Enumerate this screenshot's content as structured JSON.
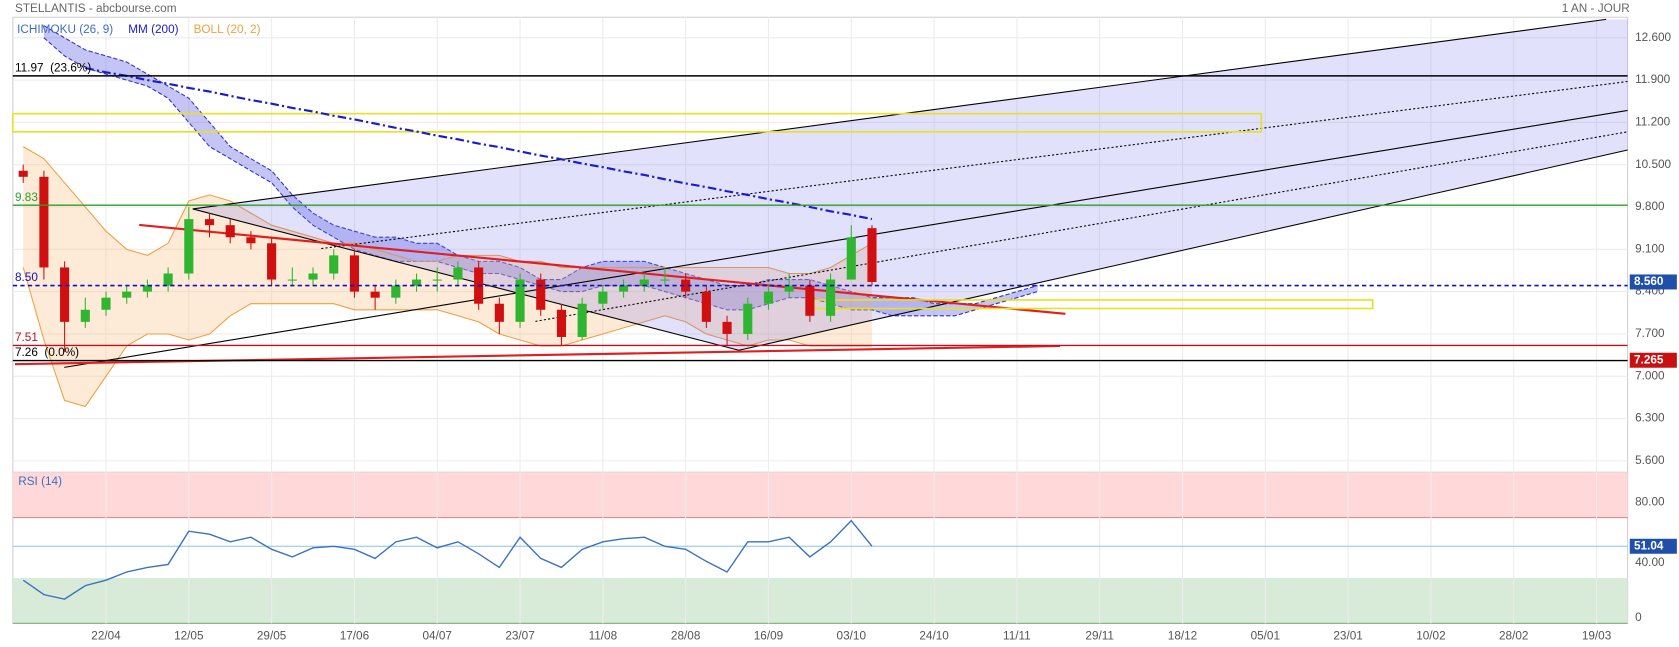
{
  "header": {
    "title": "STELLANTIS - abcbourse.com",
    "period": "1 AN - JOUR"
  },
  "chart_data": [
    {
      "type": "candlestick",
      "categories": [
        null,
        null,
        null,
        null,
        "22/04",
        null,
        null,
        null,
        "12/05",
        null,
        null,
        null,
        "29/05",
        null,
        null,
        null,
        "17/06",
        null,
        null,
        null,
        "04/07",
        null,
        null,
        null,
        "23/07",
        null,
        null,
        null,
        "11/08",
        null,
        null,
        null,
        "28/08",
        null,
        null,
        null,
        "16/09",
        null,
        null,
        null,
        "03/10",
        null,
        null,
        null,
        "24/10",
        null,
        null,
        null,
        "11/11",
        null,
        null,
        null,
        "29/11",
        null,
        null,
        null,
        "18/12",
        null,
        null,
        null,
        "05/01",
        null,
        null,
        null,
        "23/01",
        null,
        null,
        null,
        "10/02",
        null,
        null,
        null,
        "28/02",
        null,
        null,
        null,
        "19/03",
        null
      ],
      "open": [
        10.4,
        10.3,
        8.8,
        7.9,
        8.1,
        8.3,
        8.4,
        8.5,
        8.7,
        9.6,
        9.5,
        9.3,
        9.2,
        8.6,
        8.6,
        8.7,
        9.0,
        8.4,
        8.3,
        8.5,
        8.6,
        8.6,
        8.8,
        8.2,
        7.9,
        8.6,
        8.1,
        7.65,
        8.2,
        8.4,
        8.5,
        8.6,
        8.6,
        8.4,
        7.9,
        7.7,
        8.2,
        8.4,
        8.5,
        8.0,
        8.6,
        9.45,
        null,
        null,
        null,
        null,
        null,
        null,
        null,
        null,
        null,
        null,
        null,
        null,
        null,
        null,
        null,
        null,
        null,
        null,
        null,
        null,
        null,
        null,
        null,
        null,
        null,
        null,
        null,
        null,
        null,
        null,
        null,
        null,
        null,
        null,
        null,
        null
      ],
      "high": [
        10.5,
        10.4,
        8.9,
        8.3,
        8.4,
        8.5,
        8.6,
        8.8,
        9.8,
        9.7,
        9.6,
        9.4,
        9.3,
        8.8,
        8.8,
        9.1,
        9.1,
        8.5,
        8.6,
        8.7,
        8.8,
        8.9,
        8.9,
        8.3,
        8.7,
        8.7,
        8.2,
        8.3,
        8.5,
        8.6,
        8.7,
        8.8,
        8.7,
        8.5,
        8.0,
        8.3,
        8.5,
        8.7,
        8.6,
        8.7,
        9.5,
        9.5,
        null,
        null,
        null,
        null,
        null,
        null,
        null,
        null,
        null,
        null,
        null,
        null,
        null,
        null,
        null,
        null,
        null,
        null,
        null,
        null,
        null,
        null,
        null,
        null,
        null,
        null,
        null,
        null,
        null,
        null,
        null,
        null,
        null,
        null,
        null,
        null
      ],
      "low": [
        10.2,
        8.6,
        7.4,
        7.8,
        8.0,
        8.2,
        8.3,
        8.4,
        8.6,
        9.3,
        9.2,
        9.1,
        8.5,
        8.5,
        8.5,
        8.6,
        8.3,
        8.1,
        8.2,
        8.4,
        8.4,
        8.5,
        8.1,
        7.7,
        7.8,
        8.0,
        7.5,
        7.6,
        8.1,
        8.3,
        8.4,
        8.5,
        8.3,
        7.8,
        7.5,
        7.6,
        8.1,
        8.3,
        7.9,
        7.9,
        8.6,
        8.5,
        null,
        null,
        null,
        null,
        null,
        null,
        null,
        null,
        null,
        null,
        null,
        null,
        null,
        null,
        null,
        null,
        null,
        null,
        null,
        null,
        null,
        null,
        null,
        null,
        null,
        null,
        null,
        null,
        null,
        null,
        null,
        null,
        null,
        null,
        null,
        null
      ],
      "close": [
        10.3,
        8.8,
        7.9,
        8.1,
        8.3,
        8.4,
        8.5,
        8.7,
        9.6,
        9.5,
        9.3,
        9.2,
        8.6,
        8.6,
        8.7,
        9.0,
        8.4,
        8.3,
        8.5,
        8.6,
        8.6,
        8.8,
        8.2,
        7.9,
        8.6,
        8.1,
        7.65,
        8.2,
        8.4,
        8.5,
        8.6,
        8.6,
        8.4,
        7.9,
        7.7,
        8.2,
        8.4,
        8.5,
        8.0,
        8.6,
        9.3,
        8.56,
        null,
        null,
        null,
        null,
        null,
        null,
        null,
        null,
        null,
        null,
        null,
        null,
        null,
        null,
        null,
        null,
        null,
        null,
        null,
        null,
        null,
        null,
        null,
        null,
        null,
        null,
        null,
        null,
        null,
        null,
        null,
        null,
        null,
        null,
        null,
        null
      ],
      "up_color": "#2fb52f",
      "down_color": "#d01010",
      "overlays": [
        {
          "name": "ICHIMOKU (26, 9)",
          "kind": "band",
          "color": "#3f6fc0",
          "fill": "rgba(90,90,225,0.35)",
          "edge": "#3030c8",
          "upper": [
            null,
            12.8,
            12.6,
            12.4,
            12.3,
            12.2,
            12.0,
            11.8,
            11.6,
            11.2,
            10.8,
            10.6,
            10.4,
            10.0,
            9.7,
            9.5,
            9.4,
            9.3,
            9.3,
            9.2,
            9.2,
            9.0,
            8.9,
            8.9,
            8.8,
            8.6,
            8.6,
            8.8,
            8.9,
            8.9,
            8.9,
            8.8,
            8.7,
            8.6,
            8.5,
            8.5,
            8.6,
            8.6,
            8.6,
            8.5,
            8.4,
            8.3,
            8.3,
            8.3,
            8.2,
            8.2,
            8.2,
            8.3,
            8.4,
            8.5,
            null,
            null,
            null,
            null,
            null,
            null,
            null,
            null,
            null,
            null,
            null,
            null,
            null,
            null,
            null,
            null,
            null,
            null,
            null,
            null,
            null,
            null,
            null,
            null,
            null,
            null,
            null,
            null
          ],
          "lower": [
            null,
            12.6,
            12.3,
            12.1,
            12.0,
            11.9,
            11.8,
            11.6,
            11.2,
            10.8,
            10.6,
            10.4,
            10.2,
            9.8,
            9.5,
            9.3,
            9.1,
            9.0,
            8.9,
            8.9,
            8.9,
            8.8,
            8.7,
            8.7,
            8.6,
            8.5,
            8.4,
            8.4,
            8.5,
            8.5,
            8.5,
            8.4,
            8.3,
            8.2,
            8.1,
            8.1,
            8.2,
            8.3,
            8.3,
            8.2,
            8.1,
            8.1,
            8.0,
            8.0,
            8.0,
            8.0,
            8.1,
            8.2,
            8.3,
            8.4,
            null,
            null,
            null,
            null,
            null,
            null,
            null,
            null,
            null,
            null,
            null,
            null,
            null,
            null,
            null,
            null,
            null,
            null,
            null,
            null,
            null,
            null,
            null,
            null,
            null,
            null,
            null,
            null
          ]
        },
        {
          "name": "MM (200)",
          "kind": "line",
          "color": "#1a1ad0",
          "values": [
            null,
            null,
            null,
            12.1,
            12.03,
            11.97,
            11.9,
            11.84,
            11.77,
            11.71,
            11.64,
            11.57,
            11.51,
            11.44,
            11.38,
            11.31,
            11.25,
            11.18,
            11.11,
            11.05,
            10.98,
            10.92,
            10.85,
            10.79,
            10.72,
            10.65,
            10.59,
            10.52,
            10.46,
            10.39,
            10.33,
            10.26,
            10.19,
            10.13,
            10.06,
            10.0,
            9.93,
            9.87,
            9.8,
            9.73,
            9.67,
            9.6,
            null,
            null,
            null,
            null,
            null,
            null,
            null,
            null,
            null,
            null,
            null,
            null,
            null,
            null,
            null,
            null,
            null,
            null,
            null,
            null,
            null,
            null,
            null,
            null,
            null,
            null,
            null,
            null,
            null,
            null,
            null,
            null,
            null,
            null,
            null,
            null
          ]
        },
        {
          "name": "BOLL (20, 2)",
          "kind": "band",
          "color": "#f0a040",
          "fill": "rgba(250,190,130,0.32)",
          "edge": "#f0a040",
          "upper": [
            10.8,
            10.6,
            10.2,
            9.8,
            9.4,
            9.1,
            9.0,
            9.2,
            9.9,
            10.0,
            9.9,
            9.7,
            9.5,
            9.4,
            9.3,
            9.2,
            9.2,
            9.1,
            9.0,
            8.9,
            8.9,
            9.0,
            9.0,
            9.0,
            8.9,
            8.9,
            8.8,
            8.8,
            8.8,
            8.8,
            8.8,
            8.8,
            8.8,
            8.8,
            8.8,
            8.8,
            8.8,
            8.7,
            8.7,
            8.8,
            9.0,
            9.2,
            null,
            null,
            null,
            null,
            null,
            null,
            null,
            null,
            null,
            null,
            null,
            null,
            null,
            null,
            null,
            null,
            null,
            null,
            null,
            null,
            null,
            null,
            null,
            null,
            null,
            null,
            null,
            null,
            null,
            null,
            null,
            null,
            null,
            null,
            null,
            null
          ],
          "lower": [
            8.8,
            7.6,
            6.6,
            6.5,
            7.0,
            7.5,
            7.7,
            7.7,
            7.6,
            7.7,
            8.0,
            8.2,
            8.2,
            8.2,
            8.2,
            8.2,
            8.1,
            8.1,
            8.1,
            8.1,
            8.1,
            8.0,
            7.9,
            7.7,
            7.6,
            7.5,
            7.5,
            7.6,
            7.7,
            7.8,
            7.9,
            8.0,
            7.9,
            7.7,
            7.6,
            7.5,
            7.6,
            7.6,
            7.5,
            7.5,
            7.5,
            7.5,
            null,
            null,
            null,
            null,
            null,
            null,
            null,
            null,
            null,
            null,
            null,
            null,
            null,
            null,
            null,
            null,
            null,
            null,
            null,
            null,
            null,
            null,
            null,
            null,
            null,
            null,
            null,
            null,
            null,
            null,
            null,
            null,
            null,
            null,
            null,
            null
          ]
        }
      ],
      "levels": [
        {
          "value": 11.97,
          "label": "11.97  (23.6%)",
          "color": "#000000",
          "dash": false
        },
        {
          "value": 9.83,
          "label": "9.83",
          "color": "#2aa02a",
          "dash": false
        },
        {
          "value": 8.5,
          "label": "8.50",
          "color": "#1010c0",
          "dash": true
        },
        {
          "value": 7.51,
          "label": "7.51",
          "color": "#c01020",
          "dash": false
        },
        {
          "value": 7.26,
          "label": "7.26  (0.0%)",
          "color": "#000000",
          "dash": false
        }
      ],
      "axis_labels": [
        {
          "value": 8.56,
          "label": "8.560",
          "color": "#1f4fa8"
        },
        {
          "value": 7.265,
          "label": "7.265",
          "color": "#c81010"
        }
      ],
      "ylim": [
        5.41,
        12.94
      ],
      "yticks": [
        {
          "value": 12.6,
          "label": "12.600"
        },
        {
          "value": 11.9,
          "label": "11.900"
        },
        {
          "value": 11.2,
          "label": "11.200"
        },
        {
          "value": 10.5,
          "label": "10.500"
        },
        {
          "value": 9.8,
          "label": "9.800"
        },
        {
          "value": 9.1,
          "label": "9.100"
        },
        {
          "value": 8.4,
          "label": "8.400"
        },
        {
          "value": 7.7,
          "label": "7.700"
        },
        {
          "value": 7.0,
          "label": "7.000"
        },
        {
          "value": 6.3,
          "label": "6.300"
        },
        {
          "value": 5.6,
          "label": "5.600"
        }
      ],
      "grid": true
    },
    {
      "type": "line",
      "title": "RSI (14)",
      "color": "#3a72c0",
      "values": [
        28.6,
        19,
        16,
        25,
        28.6,
        34,
        37,
        39,
        61,
        59,
        54,
        57,
        49,
        44,
        50,
        51,
        49,
        43,
        54,
        57,
        50,
        54,
        46,
        37,
        57,
        43,
        37,
        49,
        54,
        56,
        57,
        51,
        49,
        41,
        34,
        54,
        54,
        57,
        44,
        54,
        68,
        51.04,
        null,
        null,
        null,
        null,
        null,
        null,
        null,
        null,
        null,
        null,
        null,
        null,
        null,
        null,
        null,
        null,
        null,
        null,
        null,
        null,
        null,
        null,
        null,
        null,
        null,
        null,
        null,
        null,
        null,
        null,
        null,
        null,
        null,
        null,
        null,
        null
      ],
      "zones": [
        {
          "from": 70,
          "to": 100,
          "color": "#ffd9d9"
        },
        {
          "from": 0,
          "to": 30,
          "color": "#d8ebd8"
        }
      ],
      "axis_labels": [
        {
          "value": 51.04,
          "label": "51.04",
          "color": "#1f4fa8",
          "line": "#8cc4f0"
        }
      ],
      "ylim": [
        0,
        100
      ],
      "yticks": [
        {
          "value": 80,
          "label": "80.00"
        },
        {
          "value": 40,
          "label": "40.00"
        },
        0
      ],
      "grid": true
    }
  ]
}
